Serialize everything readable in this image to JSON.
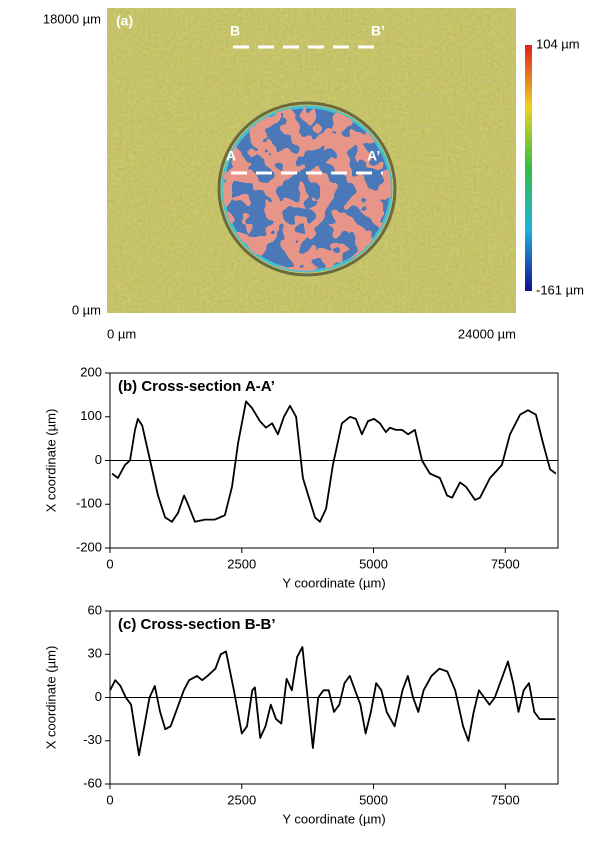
{
  "chart_data": [
    {
      "type": "image",
      "annotations": [
        "(a)",
        "A",
        "A’",
        "B",
        "B’"
      ],
      "xlim": [
        0,
        24000
      ],
      "ylim": [
        0,
        18000
      ],
      "xticks": [
        {
          "value": 0,
          "label": "0 µm"
        },
        {
          "value": 24000,
          "label": "24000 µm"
        }
      ],
      "yticks": [
        {
          "value": 0,
          "label": "0 µm"
        },
        {
          "value": 18000,
          "label": "18000 µm"
        }
      ],
      "colorbar": {
        "lim": [
          -161,
          104
        ],
        "ticks": [
          {
            "value": 104,
            "label": "104 µm"
          },
          {
            "value": -161,
            "label": "-161 µm"
          }
        ]
      }
    },
    {
      "type": "line",
      "title": "(b) Cross-section A-A’",
      "xlabel": "Y coordinate (µm)",
      "ylabel": "X coordinate (µm)",
      "xlim": [
        0,
        8500
      ],
      "xticks": [
        0,
        2500,
        5000,
        7500
      ],
      "ylim": [
        -200,
        200
      ],
      "yticks": [
        -200,
        -100,
        0,
        100,
        200
      ],
      "color": "#000000",
      "x": [
        40,
        150,
        285,
        380,
        475,
        530,
        610,
        760,
        910,
        1045,
        1175,
        1290,
        1405,
        1480,
        1610,
        1800,
        1990,
        2180,
        2315,
        2430,
        2580,
        2695,
        2845,
        2960,
        3075,
        3185,
        3300,
        3415,
        3530,
        3660,
        3890,
        3985,
        4100,
        4230,
        4400,
        4555,
        4665,
        4780,
        4895,
        5010,
        5120,
        5235,
        5310,
        5425,
        5540,
        5655,
        5785,
        5920,
        6070,
        6260,
        6395,
        6490,
        6640,
        6755,
        6925,
        7020,
        7210,
        7325,
        7435,
        7590,
        7780,
        7930,
        8080,
        8215,
        8350,
        8460
      ],
      "values": [
        -30,
        -40,
        -10,
        0,
        70,
        95,
        80,
        0,
        -80,
        -130,
        -140,
        -120,
        -80,
        -100,
        -140,
        -135,
        -135,
        -125,
        -60,
        40,
        135,
        120,
        90,
        75,
        85,
        60,
        100,
        125,
        100,
        -40,
        -130,
        -140,
        -110,
        -10,
        85,
        100,
        95,
        60,
        90,
        95,
        85,
        65,
        75,
        70,
        70,
        60,
        70,
        0,
        -30,
        -40,
        -80,
        -85,
        -50,
        -60,
        -90,
        -85,
        -40,
        -25,
        -10,
        60,
        105,
        115,
        105,
        40,
        -20,
        -30
      ]
    },
    {
      "type": "line",
      "title": "(c) Cross-section B-B’",
      "xlabel": "Y coordinate (µm)",
      "ylabel": "X coordinate (µm)",
      "xlim": [
        0,
        8500
      ],
      "xticks": [
        0,
        2500,
        5000,
        7500
      ],
      "ylim": [
        -60,
        60
      ],
      "yticks": [
        -60,
        -30,
        0,
        30,
        60
      ],
      "color": "#000000",
      "x": [
        0,
        100,
        200,
        300,
        400,
        550,
        650,
        750,
        850,
        950,
        1050,
        1150,
        1250,
        1400,
        1500,
        1650,
        1750,
        1850,
        2000,
        2100,
        2200,
        2350,
        2500,
        2600,
        2700,
        2750,
        2850,
        2950,
        3050,
        3150,
        3250,
        3350,
        3450,
        3550,
        3650,
        3750,
        3850,
        3950,
        4050,
        4150,
        4250,
        4350,
        4450,
        4550,
        4650,
        4750,
        4850,
        4950,
        5050,
        5150,
        5250,
        5400,
        5550,
        5650,
        5750,
        5850,
        5950,
        6100,
        6250,
        6400,
        6550,
        6700,
        6800,
        6900,
        7000,
        7100,
        7200,
        7300,
        7450,
        7550,
        7650,
        7750,
        7850,
        7950,
        8050,
        8150,
        8300,
        8450
      ],
      "values": [
        5,
        12,
        8,
        0,
        -5,
        -40,
        -20,
        0,
        8,
        -10,
        -22,
        -20,
        -10,
        5,
        12,
        15,
        12,
        15,
        20,
        30,
        32,
        5,
        -25,
        -20,
        5,
        7,
        -28,
        -20,
        -5,
        -15,
        -18,
        13,
        5,
        28,
        35,
        0,
        -35,
        0,
        5,
        5,
        -10,
        -5,
        10,
        15,
        5,
        -5,
        -25,
        -10,
        10,
        5,
        -10,
        -20,
        5,
        15,
        0,
        -10,
        5,
        15,
        20,
        18,
        5,
        -20,
        -30,
        -10,
        5,
        0,
        -5,
        0,
        15,
        25,
        10,
        -10,
        5,
        10,
        -10,
        -15,
        -15,
        -15
      ]
    }
  ]
}
